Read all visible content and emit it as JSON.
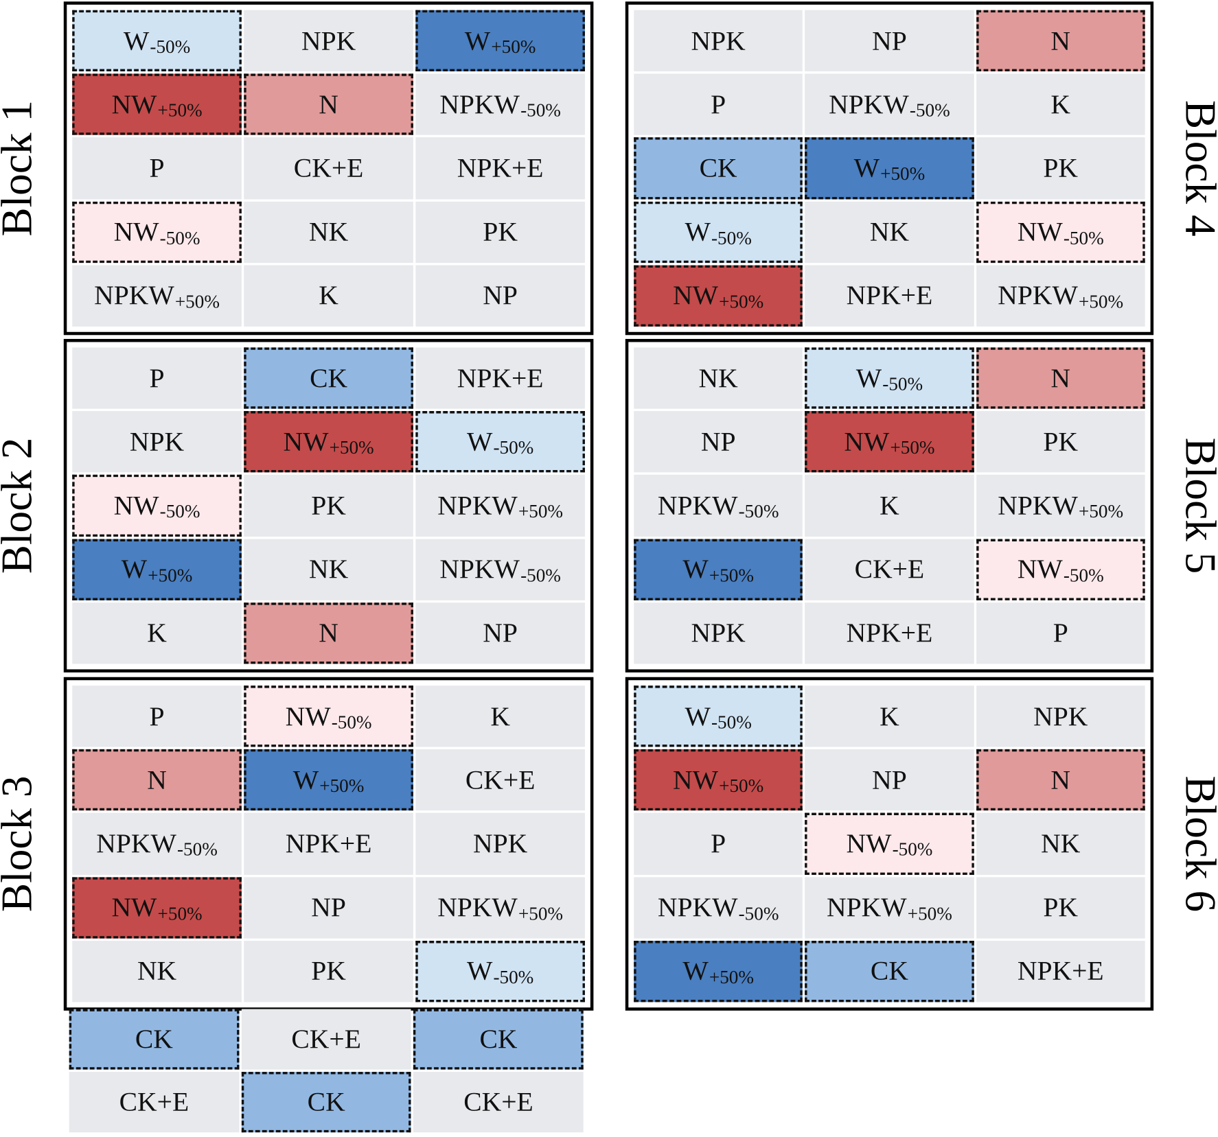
{
  "colors": {
    "neutral": "#e7e9ec",
    "CK": "#92b8e2",
    "W+50%": "#4a7fc1",
    "W-50%": "#d0e3f3",
    "N": "#e09a9a",
    "NW+50%": "#c44b4b",
    "NW-50%": "#fde9ec"
  },
  "blocks": [
    {
      "label": "Block 1",
      "side": "left",
      "rows": [
        [
          {
            "main": "W",
            "sub": "-50%"
          },
          {
            "main": "NPK",
            "sub": ""
          },
          {
            "main": "W",
            "sub": "+50%"
          }
        ],
        [
          {
            "main": "NW",
            "sub": "+50%"
          },
          {
            "main": "N",
            "sub": ""
          },
          {
            "main": "NPKW",
            "sub": "-50%"
          }
        ],
        [
          {
            "main": "P",
            "sub": ""
          },
          {
            "main": "CK+E",
            "sub": ""
          },
          {
            "main": "NPK+E",
            "sub": ""
          }
        ],
        [
          {
            "main": "NW",
            "sub": "-50%"
          },
          {
            "main": "NK",
            "sub": ""
          },
          {
            "main": "PK",
            "sub": ""
          }
        ],
        [
          {
            "main": "NPKW",
            "sub": "+50%"
          },
          {
            "main": "K",
            "sub": ""
          },
          {
            "main": "NP",
            "sub": ""
          }
        ]
      ]
    },
    {
      "label": "Block 2",
      "side": "left",
      "rows": [
        [
          {
            "main": "P",
            "sub": ""
          },
          {
            "main": "CK",
            "sub": ""
          },
          {
            "main": "NPK+E",
            "sub": ""
          }
        ],
        [
          {
            "main": "NPK",
            "sub": ""
          },
          {
            "main": "NW",
            "sub": "+50%"
          },
          {
            "main": "W",
            "sub": "-50%"
          }
        ],
        [
          {
            "main": "NW",
            "sub": "-50%"
          },
          {
            "main": "PK",
            "sub": ""
          },
          {
            "main": "NPKW",
            "sub": "+50%"
          }
        ],
        [
          {
            "main": "W",
            "sub": "+50%"
          },
          {
            "main": "NK",
            "sub": ""
          },
          {
            "main": "NPKW",
            "sub": "-50%"
          }
        ],
        [
          {
            "main": "K",
            "sub": ""
          },
          {
            "main": "N",
            "sub": ""
          },
          {
            "main": "NP",
            "sub": ""
          }
        ]
      ]
    },
    {
      "label": "Block 3",
      "side": "left",
      "rows": [
        [
          {
            "main": "P",
            "sub": ""
          },
          {
            "main": "NW",
            "sub": "-50%"
          },
          {
            "main": "K",
            "sub": ""
          }
        ],
        [
          {
            "main": "N",
            "sub": ""
          },
          {
            "main": "W",
            "sub": "+50%"
          },
          {
            "main": "CK+E",
            "sub": ""
          }
        ],
        [
          {
            "main": "NPKW",
            "sub": "-50%"
          },
          {
            "main": "NPK+E",
            "sub": ""
          },
          {
            "main": "NPK",
            "sub": ""
          }
        ],
        [
          {
            "main": "NW",
            "sub": "+50%"
          },
          {
            "main": "NP",
            "sub": ""
          },
          {
            "main": "NPKW",
            "sub": "+50%"
          }
        ],
        [
          {
            "main": "NK",
            "sub": ""
          },
          {
            "main": "PK",
            "sub": ""
          },
          {
            "main": "W",
            "sub": "-50%"
          }
        ]
      ]
    },
    {
      "label": "Block 4",
      "side": "right",
      "rows": [
        [
          {
            "main": "NPK",
            "sub": ""
          },
          {
            "main": "NP",
            "sub": ""
          },
          {
            "main": "N",
            "sub": ""
          }
        ],
        [
          {
            "main": "P",
            "sub": ""
          },
          {
            "main": "NPKW",
            "sub": "-50%"
          },
          {
            "main": "K",
            "sub": ""
          }
        ],
        [
          {
            "main": "CK",
            "sub": ""
          },
          {
            "main": "W",
            "sub": "+50%"
          },
          {
            "main": "PK",
            "sub": ""
          }
        ],
        [
          {
            "main": "W",
            "sub": "-50%"
          },
          {
            "main": "NK",
            "sub": ""
          },
          {
            "main": "NW",
            "sub": "-50%"
          }
        ],
        [
          {
            "main": "NW",
            "sub": "+50%"
          },
          {
            "main": "NPK+E",
            "sub": ""
          },
          {
            "main": "NPKW",
            "sub": "+50%"
          }
        ]
      ]
    },
    {
      "label": "Block 5",
      "side": "right",
      "rows": [
        [
          {
            "main": "NK",
            "sub": ""
          },
          {
            "main": "W",
            "sub": "-50%"
          },
          {
            "main": "N",
            "sub": ""
          }
        ],
        [
          {
            "main": "NP",
            "sub": ""
          },
          {
            "main": "NW",
            "sub": "+50%"
          },
          {
            "main": "PK",
            "sub": ""
          }
        ],
        [
          {
            "main": "NPKW",
            "sub": "-50%"
          },
          {
            "main": "K",
            "sub": ""
          },
          {
            "main": "NPKW",
            "sub": "+50%"
          }
        ],
        [
          {
            "main": "W",
            "sub": "+50%"
          },
          {
            "main": "CK+E",
            "sub": ""
          },
          {
            "main": "NW",
            "sub": "-50%"
          }
        ],
        [
          {
            "main": "NPK",
            "sub": ""
          },
          {
            "main": "NPK+E",
            "sub": ""
          },
          {
            "main": "P",
            "sub": ""
          }
        ]
      ]
    },
    {
      "label": "Block 6",
      "side": "right",
      "rows": [
        [
          {
            "main": "W",
            "sub": "-50%"
          },
          {
            "main": "K",
            "sub": ""
          },
          {
            "main": "NPK",
            "sub": ""
          }
        ],
        [
          {
            "main": "NW",
            "sub": "+50%"
          },
          {
            "main": "NP",
            "sub": ""
          },
          {
            "main": "N",
            "sub": ""
          }
        ],
        [
          {
            "main": "P",
            "sub": ""
          },
          {
            "main": "NW",
            "sub": "-50%"
          },
          {
            "main": "NK",
            "sub": ""
          }
        ],
        [
          {
            "main": "NPKW",
            "sub": "-50%"
          },
          {
            "main": "NPKW",
            "sub": "+50%"
          },
          {
            "main": "PK",
            "sub": ""
          }
        ],
        [
          {
            "main": "W",
            "sub": "+50%"
          },
          {
            "main": "CK",
            "sub": ""
          },
          {
            "main": "NPK+E",
            "sub": ""
          }
        ]
      ]
    }
  ],
  "extra_rows": [
    [
      {
        "main": "CK",
        "sub": ""
      },
      {
        "main": "CK+E",
        "sub": ""
      },
      {
        "main": "CK",
        "sub": ""
      }
    ],
    [
      {
        "main": "CK+E",
        "sub": ""
      },
      {
        "main": "CK",
        "sub": ""
      },
      {
        "main": "CK+E",
        "sub": ""
      }
    ]
  ]
}
